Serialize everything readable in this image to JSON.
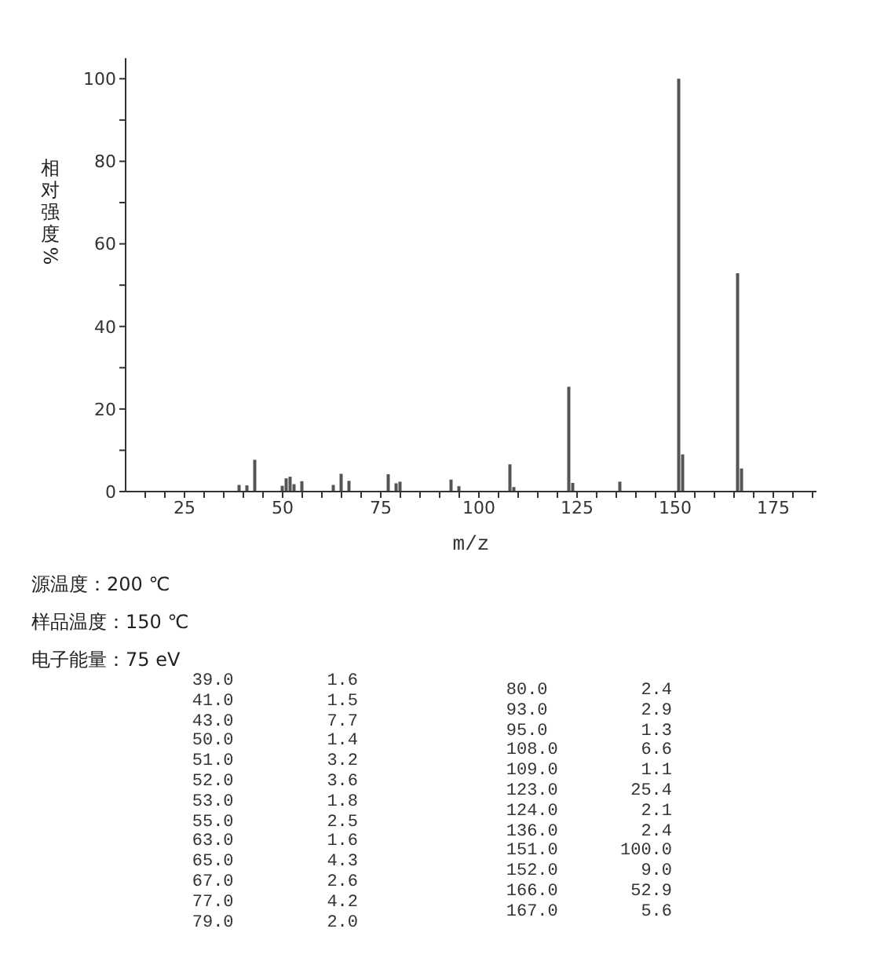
{
  "chart_data": {
    "type": "bar",
    "xlabel": "m/z",
    "ylabel": "相对强度%",
    "x": [
      39,
      41,
      43,
      50,
      51,
      52,
      53,
      55,
      63,
      65,
      67,
      77,
      79,
      80,
      93,
      95,
      108,
      109,
      123,
      124,
      136,
      151,
      152,
      166,
      167
    ],
    "values": [
      1.6,
      1.5,
      7.7,
      1.4,
      3.2,
      3.6,
      1.8,
      2.5,
      1.6,
      4.3,
      2.6,
      4.2,
      2.0,
      2.4,
      2.9,
      1.3,
      6.6,
      1.1,
      25.4,
      2.1,
      2.4,
      100.0,
      9.0,
      52.9,
      5.6
    ],
    "color": "#555555",
    "xlim": [
      10,
      186
    ],
    "xticks": [
      {
        "value": 15,
        "label": null
      },
      {
        "value": 20,
        "label": null
      },
      25,
      {
        "value": 30,
        "label": null
      },
      {
        "value": 35,
        "label": null
      },
      {
        "value": 40,
        "label": null
      },
      {
        "value": 45,
        "label": null
      },
      50,
      {
        "value": 55,
        "label": null
      },
      {
        "value": 60,
        "label": null
      },
      {
        "value": 65,
        "label": null
      },
      {
        "value": 70,
        "label": null
      },
      75,
      {
        "value": 80,
        "label": null
      },
      {
        "value": 85,
        "label": null
      },
      {
        "value": 90,
        "label": null
      },
      {
        "value": 95,
        "label": null
      },
      100,
      {
        "value": 105,
        "label": null
      },
      {
        "value": 110,
        "label": null
      },
      {
        "value": 115,
        "label": null
      },
      {
        "value": 120,
        "label": null
      },
      125,
      {
        "value": 130,
        "label": null
      },
      {
        "value": 135,
        "label": null
      },
      {
        "value": 140,
        "label": null
      },
      {
        "value": 145,
        "label": null
      },
      150,
      {
        "value": 155,
        "label": null
      },
      {
        "value": 160,
        "label": null
      },
      {
        "value": 165,
        "label": null
      },
      {
        "value": 170,
        "label": null
      },
      175,
      {
        "value": 180,
        "label": null
      },
      {
        "value": 185,
        "label": null
      }
    ],
    "ylim": [
      0,
      105
    ],
    "yticks": [
      0,
      {
        "value": 10,
        "label": null
      },
      20,
      {
        "value": 30,
        "label": null
      },
      40,
      {
        "value": 50,
        "label": null
      },
      60,
      {
        "value": 70,
        "label": null
      },
      80,
      {
        "value": 90,
        "label": null
      },
      100
    ],
    "grid": false,
    "annotations": [
      "源温度：200 ℃",
      "样品温度：150 ℃",
      "电子能量：75 eV",
      "39.0         1.6",
      "41.0         1.5",
      "43.0         7.7",
      "50.0         1.4",
      "51.0         3.2",
      "52.0         3.6",
      "53.0         1.8",
      "55.0         2.5",
      "63.0         1.6",
      "65.0         4.3",
      "67.0         2.6",
      "77.0         4.2",
      "79.0         2.0",
      "80.0         2.4",
      "93.0         2.9",
      "95.0         1.3",
      "108.0        6.6",
      "109.0        1.1",
      "123.0       25.4",
      "124.0        2.1",
      "136.0        2.4",
      "151.0      100.0",
      "152.0        9.0",
      "166.0       52.9",
      "167.0        5.6"
    ]
  }
}
